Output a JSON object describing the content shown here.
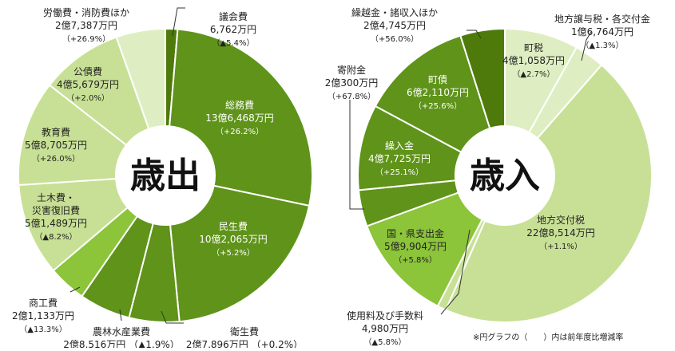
{
  "colors": {
    "dark": "#4e7a0c",
    "mid": "#5f931a",
    "bright": "#8cc43a",
    "light": "#c8e095",
    "pale": "#dfeec2",
    "leader": "#333333"
  },
  "footnote": "※円グラフの（　　）内は前年度比増減率",
  "chart_data": [
    {
      "type": "pie",
      "title": "歳出",
      "slices": [
        {
          "name": "議会費",
          "amount": "6,762万円",
          "change": "（▲5.4%）",
          "value": 6762,
          "change_pct": -5.4,
          "color": "dark"
        },
        {
          "name": "総務費",
          "amount": "13億6,468万円",
          "change": "（+26.2%）",
          "value": 136468,
          "change_pct": 26.2,
          "color": "mid"
        },
        {
          "name": "民生費",
          "amount": "10億2,065万円",
          "change": "（+5.2%）",
          "value": 102065,
          "change_pct": 5.2,
          "color": "mid"
        },
        {
          "name": "衛生費",
          "amount": "2億7,896万円",
          "change": "（+0.2%）",
          "value": 27896,
          "change_pct": 0.2,
          "color": "mid"
        },
        {
          "name": "農林水産業費",
          "amount": "2億8,516万円",
          "change": "（▲1.9%）",
          "value": 28516,
          "change_pct": -1.9,
          "color": "mid"
        },
        {
          "name": "商工費",
          "amount": "2億1,133万円",
          "change": "（▲13.3%）",
          "value": 21133,
          "change_pct": -13.3,
          "color": "bright"
        },
        {
          "name": "土木費・災害復旧費",
          "amount": "5億1,489万円",
          "change": "（▲8.2%）",
          "value": 51489,
          "change_pct": -8.2,
          "color": "light"
        },
        {
          "name": "教育費",
          "amount": "5億8,705万円",
          "change": "（+26.0%）",
          "value": 58705,
          "change_pct": 26.0,
          "color": "light"
        },
        {
          "name": "公債費",
          "amount": "4億5,679万円",
          "change": "（+2.0%）",
          "value": 45679,
          "change_pct": 2.0,
          "color": "light"
        },
        {
          "name": "労働費・消防費ほか",
          "amount": "2億7,387万円",
          "change": "（+26.9%）",
          "value": 27387,
          "change_pct": 26.9,
          "color": "pale"
        }
      ]
    },
    {
      "type": "pie",
      "title": "歳入",
      "slices": [
        {
          "name": "町税",
          "amount": "4億1,058万円",
          "change": "（▲2.7%）",
          "value": 41058,
          "change_pct": -2.7,
          "color": "pale"
        },
        {
          "name": "地方譲与税・各交付金",
          "amount": "1億6,764万円",
          "change": "（▲1.3%）",
          "value": 16764,
          "change_pct": -1.3,
          "color": "pale"
        },
        {
          "name": "地方交付税",
          "amount": "22億8,514万円",
          "change": "（+1.1%）",
          "value": 228514,
          "change_pct": 1.1,
          "color": "light"
        },
        {
          "name": "使用料及び手数料",
          "amount": "4,980万円",
          "change": "（▲5.8%）",
          "value": 4980,
          "change_pct": -5.8,
          "color": "light"
        },
        {
          "name": "国・県支出金",
          "amount": "5億9,904万円",
          "change": "（+5.8%）",
          "value": 59904,
          "change_pct": 5.8,
          "color": "bright"
        },
        {
          "name": "寄附金",
          "amount": "2億300万円",
          "change": "（+67.8%）",
          "value": 20300,
          "change_pct": 67.8,
          "color": "mid"
        },
        {
          "name": "繰入金",
          "amount": "4億7,725万円",
          "change": "（+25.1%）",
          "value": 47725,
          "change_pct": 25.1,
          "color": "mid"
        },
        {
          "name": "町債",
          "amount": "6億2,110万円",
          "change": "（+25.6%）",
          "value": 62110,
          "change_pct": 25.6,
          "color": "mid"
        },
        {
          "name": "繰越金・諸収入ほか",
          "amount": "2億4,745万円",
          "change": "（+56.0%）",
          "value": 24745,
          "change_pct": 56.0,
          "color": "dark"
        }
      ]
    }
  ]
}
